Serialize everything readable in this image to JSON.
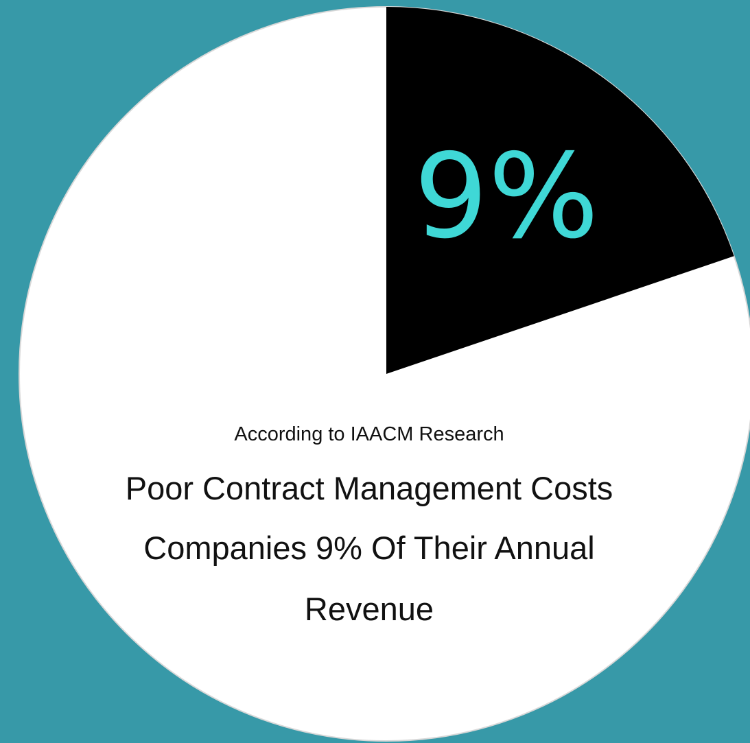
{
  "background_color": "#3799a8",
  "chart_data": {
    "type": "pie",
    "slices": [
      {
        "label": "9%",
        "value": 9,
        "color": "#000000",
        "label_color": "#3fd8d6"
      },
      {
        "label": "",
        "value": 91,
        "color": "#ffffff"
      }
    ],
    "start_angle_deg": 0,
    "direction": "clockwise"
  },
  "caption": {
    "source": "According to IAACM Research",
    "lines": [
      "Poor Contract Management Costs",
      "Companies 9% Of Their Annual",
      "Revenue"
    ]
  }
}
